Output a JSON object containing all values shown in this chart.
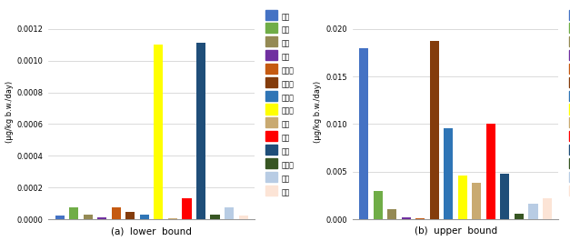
{
  "categories": [
    "곳류",
    "서류",
    "당류",
    "두류",
    "견과류",
    "채소류",
    "과일류",
    "유제품",
    "난류",
    "육류",
    "어류",
    "유지류",
    "음료",
    "주류"
  ],
  "colors": [
    "#4472C4",
    "#70AD47",
    "#948A54",
    "#7030A0",
    "#C55A11",
    "#843C0C",
    "#2F75B6",
    "#FFFF00",
    "#C9AA71",
    "#FF0000",
    "#1F4E79",
    "#375623",
    "#B8CCE4",
    "#FCE4D6"
  ],
  "lower_values": [
    2.5e-05,
    7.5e-05,
    3e-05,
    1e-05,
    7.5e-05,
    4.5e-05,
    3e-05,
    0.0011,
    5e-06,
    0.00013,
    0.00111,
    3e-05,
    7.5e-05,
    2.5e-05
  ],
  "upper_values": [
    0.018,
    0.00295,
    0.00105,
    0.0002,
    0.00015,
    0.0187,
    0.0096,
    0.0046,
    0.00385,
    0.01005,
    0.0048,
    0.00055,
    0.00165,
    0.0022
  ],
  "ylabel": "(μg/kg b.w./day)",
  "lower_ylim": [
    0,
    0.00135
  ],
  "upper_ylim": [
    0,
    0.0225
  ],
  "lower_yticks": [
    0.0,
    0.0002,
    0.0004,
    0.0006,
    0.0008,
    0.001,
    0.0012
  ],
  "upper_yticks": [
    0.0,
    0.005,
    0.01,
    0.015,
    0.02
  ],
  "lower_label": "(a)  lower  bound",
  "upper_label": "(b)  upper  bound"
}
